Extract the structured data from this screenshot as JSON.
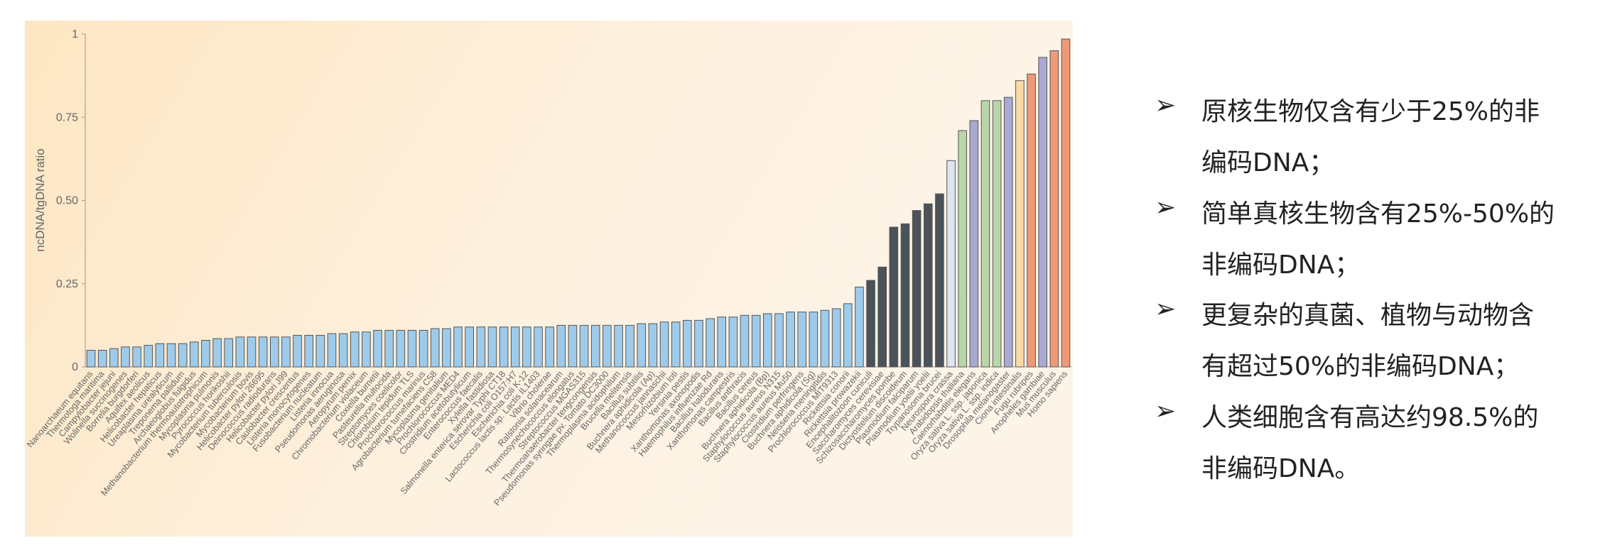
{
  "chart_data": {
    "type": "bar",
    "y_label": "ncDNA/tgDNA ratio",
    "categories": [
      "Nanoarchaeum equitans",
      "Thermotoga maritima",
      "Campylobacter jejuni",
      "Wolinella succinogenes",
      "Borrelia burgdorferi",
      "Aquifex aeolicus",
      "Helicobacter hepaticus",
      "Ureaplasma urealyticum",
      "Treponema pallidum",
      "Archaeoglobus fulgidus",
      "Methanobacterium thermoautotrophicum",
      "Mycoplasma pulmonis",
      "Pyrococcus horikoshii",
      "Mycobacterium tuberculosis",
      "Mycobacterium bovis",
      "Helicobacter pylori 26695",
      "Deinococcus radiodurans",
      "Helicobacter pylori J99",
      "Caulobacter crescentus",
      "Listeria monocytogenes",
      "Fusobacterium nucleatum",
      "Listeria innocua",
      "Pseudomonas aeruginosa",
      "Aeropyrum pernix",
      "Chromobacterium violaceum",
      "Coxiella burnetii",
      "Pasteurella multocida",
      "Streptomyces coelicolor",
      "Chlorobium tepidum TLS",
      "Prochlorococcus marinus",
      "Agrobacterium tumefaciens C58",
      "Mycoplasma genitalium",
      "Prochlorococcus MED4",
      "Clostridium acetobutylicum",
      "Enterococcus faecalis",
      "Xylella fastidiosa",
      "Salmonella enterica serovar Typhi CT18",
      "Escherichia coli O157:H7",
      "Escherichia coli K-12",
      "Lactococcus lactis sp. Lactis IL1403",
      "Vibrio cholerae",
      "Ralstonia solanacearum",
      "Thermosynechococcus elongatus",
      "Streptococcus MGAS315",
      "Thermoanaerobacter tengcongensis",
      "Pseudomonas syringae pv. Tomato DC3000",
      "Thermoplasma acidophilum",
      "Brucella melitensis",
      "Bacillus subtilis",
      "Buchnera aphidicola (Ap)",
      "Methanococcus jannaschii",
      "Mesorhizobium loti",
      "Yersinia pestis",
      "Xanthomonas axonopodis",
      "Haemophilus influenzae Rd",
      "Bacillus halodurans",
      "Xanthomonas campestris",
      "Bacillus anthracis",
      "Bacillus cereus",
      "Buchnera aphidicola (Bp)",
      "Staphylococcus aureus N315",
      "Staphylococcus aureus Mu50",
      "Clostridium perfringens",
      "Buchnera aphidicola (Sg)",
      "Neisseria meningitidis",
      "Prochlorococcus MIT9313",
      "Rickettsia conorii",
      "Rickettsia prowazekii",
      "Encephalitozoon cuniculi",
      "Saccharomyces cerevisiae",
      "Schizosaccharomyces pombe",
      "Dictyostelium discoideum",
      "Plasmodium falciparum",
      "Plasmodium yoelii yoelii",
      "Trypanosoma brucei",
      "Neurospora crassa",
      "Arabidopsis thaliana",
      "Caenorhabditis elegans",
      "Oryza sativa L. ssp. japonica",
      "Oryza sativa L. ssp. indica",
      "Drosophila melanogaster",
      "Ciona intestinalis",
      "Fugu rubripes",
      "Anopheles gambiae",
      "Mus musculus",
      "Homo sapiens"
    ],
    "values": [
      0.05,
      0.05,
      0.055,
      0.06,
      0.06,
      0.065,
      0.07,
      0.07,
      0.07,
      0.075,
      0.08,
      0.085,
      0.085,
      0.09,
      0.09,
      0.09,
      0.09,
      0.09,
      0.095,
      0.095,
      0.095,
      0.1,
      0.1,
      0.105,
      0.105,
      0.11,
      0.11,
      0.11,
      0.11,
      0.11,
      0.115,
      0.115,
      0.12,
      0.12,
      0.12,
      0.12,
      0.12,
      0.12,
      0.12,
      0.12,
      0.12,
      0.125,
      0.125,
      0.125,
      0.125,
      0.125,
      0.125,
      0.125,
      0.13,
      0.13,
      0.135,
      0.135,
      0.14,
      0.14,
      0.145,
      0.15,
      0.15,
      0.155,
      0.155,
      0.16,
      0.16,
      0.165,
      0.165,
      0.165,
      0.17,
      0.175,
      0.19,
      0.24,
      0.26,
      0.3,
      0.42,
      0.43,
      0.47,
      0.49,
      0.52,
      0.62,
      0.71,
      0.74,
      0.8,
      0.8,
      0.81,
      0.86,
      0.88,
      0.93,
      0.95,
      0.985
    ],
    "colors": [
      "#9fcbea",
      "#9fcbea",
      "#9fcbea",
      "#9fcbea",
      "#9fcbea",
      "#9fcbea",
      "#9fcbea",
      "#9fcbea",
      "#9fcbea",
      "#9fcbea",
      "#9fcbea",
      "#9fcbea",
      "#9fcbea",
      "#9fcbea",
      "#9fcbea",
      "#9fcbea",
      "#9fcbea",
      "#9fcbea",
      "#9fcbea",
      "#9fcbea",
      "#9fcbea",
      "#9fcbea",
      "#9fcbea",
      "#9fcbea",
      "#9fcbea",
      "#9fcbea",
      "#9fcbea",
      "#9fcbea",
      "#9fcbea",
      "#9fcbea",
      "#9fcbea",
      "#9fcbea",
      "#9fcbea",
      "#9fcbea",
      "#9fcbea",
      "#9fcbea",
      "#9fcbea",
      "#9fcbea",
      "#9fcbea",
      "#9fcbea",
      "#9fcbea",
      "#9fcbea",
      "#9fcbea",
      "#9fcbea",
      "#9fcbea",
      "#9fcbea",
      "#9fcbea",
      "#9fcbea",
      "#9fcbea",
      "#9fcbea",
      "#9fcbea",
      "#9fcbea",
      "#9fcbea",
      "#9fcbea",
      "#9fcbea",
      "#9fcbea",
      "#9fcbea",
      "#9fcbea",
      "#9fcbea",
      "#9fcbea",
      "#9fcbea",
      "#9fcbea",
      "#9fcbea",
      "#9fcbea",
      "#9fcbea",
      "#9fcbea",
      "#9fcbea",
      "#9fcbea",
      "#4b535a",
      "#4b535a",
      "#4b535a",
      "#4b535a",
      "#4b535a",
      "#4b535a",
      "#4b535a",
      "#dde5ee",
      "#b9d5aa",
      "#a9a9d2",
      "#b9d5aa",
      "#b9d5aa",
      "#a9a9d2",
      "#fbd9a6",
      "#ee9a78",
      "#a9a9d2",
      "#ee9a78",
      "#ee9a78"
    ],
    "ylim": [
      0,
      1
    ],
    "yticks": [
      0,
      0.25,
      {
        "value": 0.5,
        "label": "0.50"
      },
      0.75,
      1
    ],
    "grid": false
  },
  "bullets": [
    [
      "原核生物仅含有少于25%的非",
      "编码DNA；"
    ],
    [
      "简单真核生物含有25%-50%的",
      "非编码DNA；"
    ],
    [
      "更复杂的真菌、植物与动物含",
      "有超过50%的非编码DNA；"
    ],
    [
      "人类细胞含有高达约98.5%的",
      "非编码DNA。"
    ]
  ]
}
